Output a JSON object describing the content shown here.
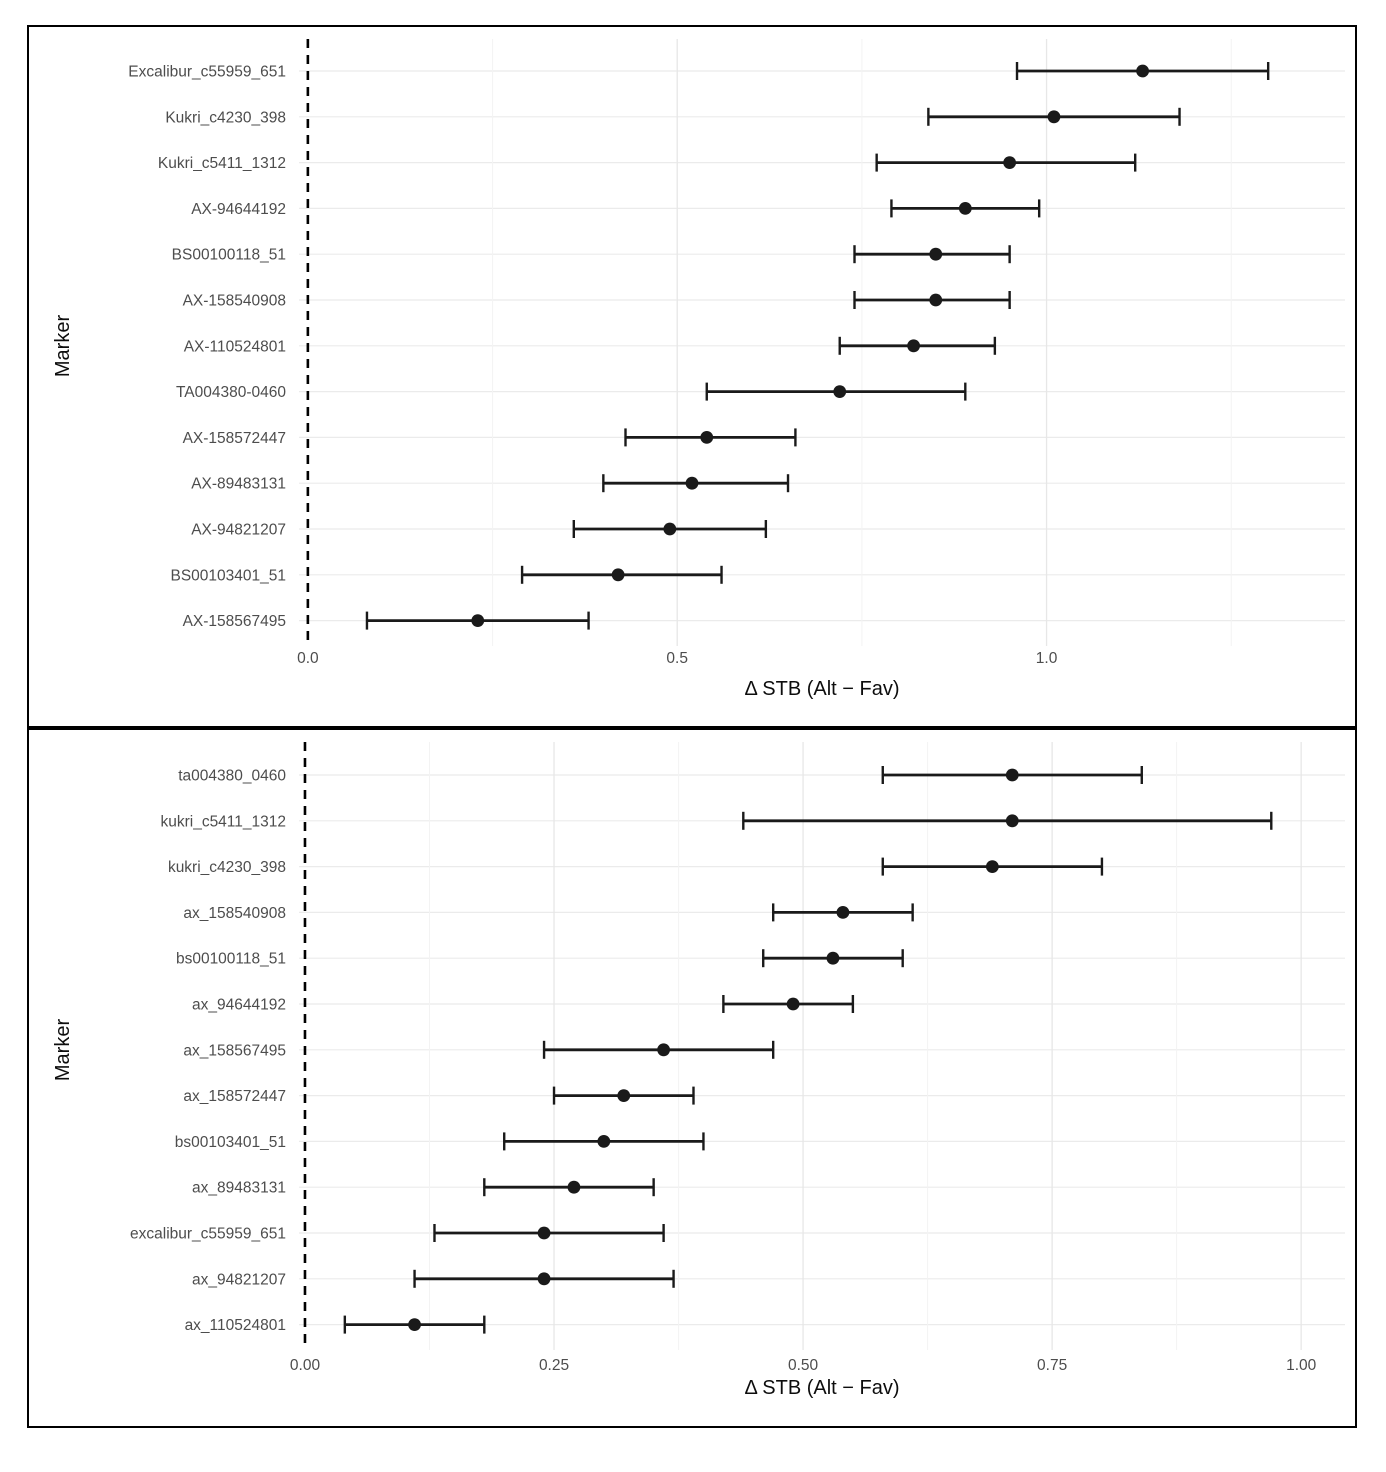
{
  "page": {
    "background": "#ffffff",
    "panel_border_color": "#000000"
  },
  "style": {
    "point_color": "#1a1a1a",
    "error_bar_color": "#1a1a1a",
    "tick_text_color": "#4d4d4d",
    "axis_title_color": "#0d0d0d",
    "major_grid_color": "#e7e7e7",
    "minor_grid_color": "#f3f3f3",
    "zero_line_color": "#000000"
  },
  "chart_data": [
    {
      "id": "top-forest-plot",
      "type": "scatter",
      "subtype": "dot-with-horizontal-error-bars",
      "title": "",
      "xlabel": "Δ STB (Alt − Fav)",
      "ylabel": "Marker",
      "xlim": [
        -0.012,
        1.404
      ],
      "grid": "on",
      "legend": "none",
      "zero_reference_line": {
        "x": 0.0,
        "style": "dashed"
      },
      "x_ticks": [
        {
          "value": 0.0,
          "label": "0.0"
        },
        {
          "value": 0.5,
          "label": "0.5"
        },
        {
          "value": 1.0,
          "label": "1.0"
        }
      ],
      "x_minor_grid_step": 0.25,
      "rows": [
        {
          "label": "Excalibur_c55959_651",
          "estimate": 1.13,
          "ci_low": 0.96,
          "ci_high": 1.3
        },
        {
          "label": "Kukri_c4230_398",
          "estimate": 1.01,
          "ci_low": 0.84,
          "ci_high": 1.18
        },
        {
          "label": "Kukri_c5411_1312",
          "estimate": 0.95,
          "ci_low": 0.77,
          "ci_high": 1.12
        },
        {
          "label": "AX-94644192",
          "estimate": 0.89,
          "ci_low": 0.79,
          "ci_high": 0.99
        },
        {
          "label": "BS00100118_51",
          "estimate": 0.85,
          "ci_low": 0.74,
          "ci_high": 0.95
        },
        {
          "label": "AX-158540908",
          "estimate": 0.85,
          "ci_low": 0.74,
          "ci_high": 0.95
        },
        {
          "label": "AX-110524801",
          "estimate": 0.82,
          "ci_low": 0.72,
          "ci_high": 0.93
        },
        {
          "label": "TA004380-0460",
          "estimate": 0.72,
          "ci_low": 0.54,
          "ci_high": 0.89
        },
        {
          "label": "AX-158572447",
          "estimate": 0.54,
          "ci_low": 0.43,
          "ci_high": 0.66
        },
        {
          "label": "AX-89483131",
          "estimate": 0.52,
          "ci_low": 0.4,
          "ci_high": 0.65
        },
        {
          "label": "AX-94821207",
          "estimate": 0.49,
          "ci_low": 0.36,
          "ci_high": 0.62
        },
        {
          "label": "BS00103401_51",
          "estimate": 0.42,
          "ci_low": 0.29,
          "ci_high": 0.56
        },
        {
          "label": "AX-158567495",
          "estimate": 0.23,
          "ci_low": 0.08,
          "ci_high": 0.38
        }
      ]
    },
    {
      "id": "bottom-forest-plot",
      "type": "scatter",
      "subtype": "dot-with-horizontal-error-bars",
      "title": "",
      "xlabel": "Δ STB (Alt − Fav)",
      "ylabel": "Marker",
      "xlim": [
        -0.006,
        1.044
      ],
      "grid": "on",
      "legend": "none",
      "zero_reference_line": {
        "x": 0.0,
        "style": "dashed"
      },
      "x_ticks": [
        {
          "value": 0.0,
          "label": "0.00"
        },
        {
          "value": 0.25,
          "label": "0.25"
        },
        {
          "value": 0.5,
          "label": "0.50"
        },
        {
          "value": 0.75,
          "label": "0.75"
        },
        {
          "value": 1.0,
          "label": "1.00"
        }
      ],
      "x_minor_grid_step": 0.125,
      "rows": [
        {
          "label": "ta004380_0460",
          "estimate": 0.71,
          "ci_low": 0.58,
          "ci_high": 0.84
        },
        {
          "label": "kukri_c5411_1312",
          "estimate": 0.71,
          "ci_low": 0.44,
          "ci_high": 0.97
        },
        {
          "label": "kukri_c4230_398",
          "estimate": 0.69,
          "ci_low": 0.58,
          "ci_high": 0.8
        },
        {
          "label": "ax_158540908",
          "estimate": 0.54,
          "ci_low": 0.47,
          "ci_high": 0.61
        },
        {
          "label": "bs00100118_51",
          "estimate": 0.53,
          "ci_low": 0.46,
          "ci_high": 0.6
        },
        {
          "label": "ax_94644192",
          "estimate": 0.49,
          "ci_low": 0.42,
          "ci_high": 0.55
        },
        {
          "label": "ax_158567495",
          "estimate": 0.36,
          "ci_low": 0.24,
          "ci_high": 0.47
        },
        {
          "label": "ax_158572447",
          "estimate": 0.32,
          "ci_low": 0.25,
          "ci_high": 0.39
        },
        {
          "label": "bs00103401_51",
          "estimate": 0.3,
          "ci_low": 0.2,
          "ci_high": 0.4
        },
        {
          "label": "ax_89483131",
          "estimate": 0.27,
          "ci_low": 0.18,
          "ci_high": 0.35
        },
        {
          "label": "excalibur_c55959_651",
          "estimate": 0.24,
          "ci_low": 0.13,
          "ci_high": 0.36
        },
        {
          "label": "ax_94821207",
          "estimate": 0.24,
          "ci_low": 0.11,
          "ci_high": 0.37
        },
        {
          "label": "ax_110524801",
          "estimate": 0.11,
          "ci_low": 0.04,
          "ci_high": 0.18
        }
      ]
    }
  ]
}
